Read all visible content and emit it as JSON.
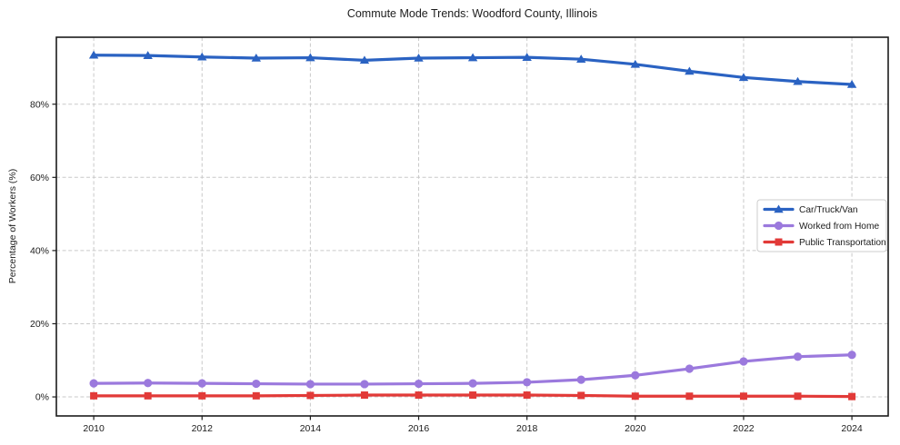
{
  "page": {
    "background": "#ffffff"
  },
  "chart_data": {
    "type": "line",
    "title": "Commute Mode Trends: Woodford County, Illinois",
    "xlabel": "",
    "ylabel": "Percentage of Workers (%)",
    "x": [
      2010,
      2011,
      2012,
      2013,
      2014,
      2015,
      2016,
      2017,
      2018,
      2019,
      2020,
      2021,
      2022,
      2023,
      2024
    ],
    "series": [
      {
        "name": "Car/Truck/Van",
        "color": "#2a62c2",
        "marker": "triangle",
        "values": [
          93.4,
          93.3,
          92.9,
          92.6,
          92.7,
          92.0,
          92.6,
          92.7,
          92.8,
          92.3,
          90.9,
          89.0,
          87.3,
          86.2,
          85.4
        ]
      },
      {
        "name": "Worked from Home",
        "color": "#9b79dd",
        "marker": "circle",
        "values": [
          3.7,
          3.8,
          3.7,
          3.6,
          3.5,
          3.5,
          3.6,
          3.7,
          4.0,
          4.7,
          5.9,
          7.7,
          9.7,
          11.0,
          11.5
        ]
      },
      {
        "name": "Public Transportation",
        "color": "#e23a38",
        "marker": "square",
        "values": [
          0.3,
          0.3,
          0.3,
          0.3,
          0.4,
          0.5,
          0.5,
          0.5,
          0.5,
          0.4,
          0.2,
          0.2,
          0.2,
          0.2,
          0.1
        ]
      }
    ],
    "xticks": [
      2010,
      2012,
      2014,
      2016,
      2018,
      2020,
      2022,
      2024
    ],
    "yticks": [
      0,
      20,
      40,
      60,
      80
    ],
    "ytick_suffix": "%",
    "xlim": [
      2009.31,
      2024.67
    ],
    "ylim": [
      -5.2,
      98.3
    ],
    "grid": true,
    "legend_position": "right",
    "colors": {
      "grid": "#c9c9c9",
      "axis": "#1c1c1c",
      "text": "#1c1c1c",
      "legend_border": "#cccccc",
      "background": "#ffffff"
    }
  }
}
